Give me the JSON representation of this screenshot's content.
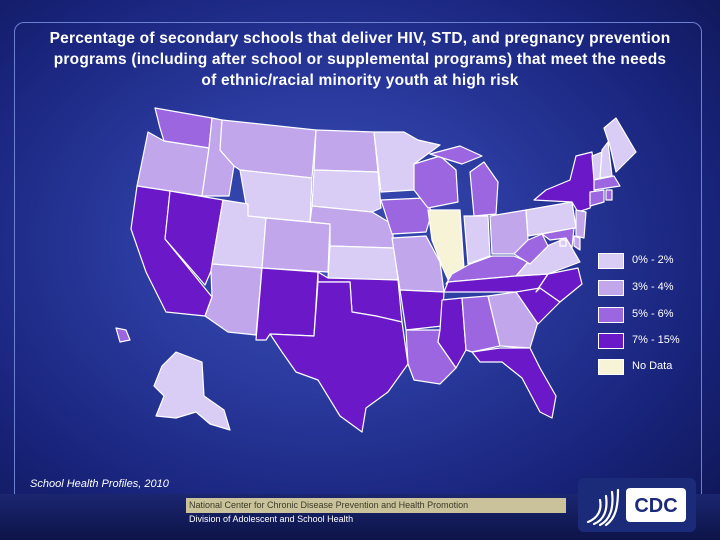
{
  "title": {
    "line1": "Percentage of secondary schools that deliver HIV, STD, and pregnancy prevention",
    "line2": "programs (including after school or supplemental programs) that meet the needs",
    "line3": "of ethnic/racial minority youth at high risk"
  },
  "colors": {
    "cat1": "#d9ccf5",
    "cat2": "#c1a6ec",
    "cat3": "#9b66e0",
    "cat4": "#6a18c8",
    "nodata": "#f7f3d6"
  },
  "legend": [
    {
      "label": "0% - 2%",
      "category": "cat1"
    },
    {
      "label": "3% - 4%",
      "category": "cat2"
    },
    {
      "label": "5% - 6%",
      "category": "cat3"
    },
    {
      "label": "7% - 15%",
      "category": "cat4"
    },
    {
      "label": "No Data",
      "category": "nodata"
    }
  ],
  "states": {
    "WA": "cat3",
    "OR": "cat2",
    "CA": "cat4",
    "NV": "cat4",
    "ID": "cat2",
    "MT": "cat2",
    "WY": "cat1",
    "UT": "cat1",
    "AZ": "cat2",
    "CO": "cat2",
    "NM": "cat4",
    "ND": "cat2",
    "SD": "cat1",
    "NE": "cat2",
    "KS": "cat1",
    "OK": "cat4",
    "TX": "cat4",
    "MN": "cat1",
    "IA": "cat3",
    "MO": "cat2",
    "AR": "cat4",
    "LA": "cat3",
    "WI": "cat3",
    "IL": "nodata",
    "MI": "cat3",
    "IN": "cat1",
    "OH": "cat2",
    "KY": "cat3",
    "TN": "cat4",
    "MS": "cat4",
    "AL": "cat3",
    "GA": "cat2",
    "FL": "cat4",
    "SC": "cat4",
    "NC": "cat4",
    "VA": "cat1",
    "WV": "cat3",
    "PA": "cat1",
    "NY": "cat4",
    "VT": "cat1",
    "NH": "cat1",
    "ME": "cat1",
    "MA": "cat3",
    "CT": "cat3",
    "RI": "cat3",
    "NJ": "cat2",
    "DE": "cat2",
    "MD": "cat3",
    "DC": "cat1",
    "AK": "cat1",
    "HI": "cat3"
  },
  "source": "School Health Profiles, 2010",
  "footer": {
    "line1": "National Center for Chronic Disease Prevention and Health Promotion",
    "line2": "Division of Adolescent and School Health"
  },
  "logo": {
    "text": "CDC"
  }
}
